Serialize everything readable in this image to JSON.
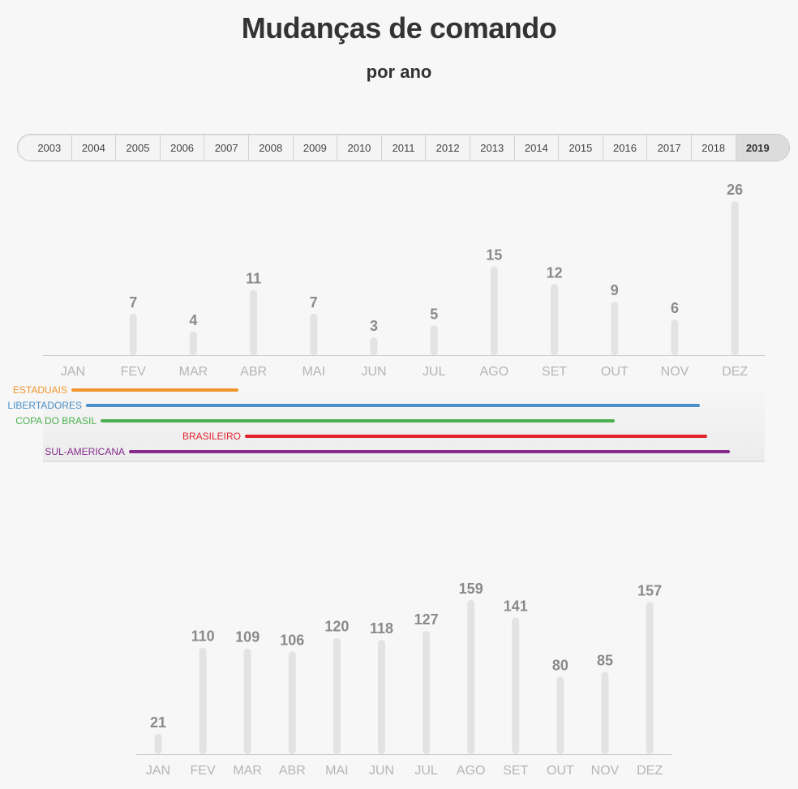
{
  "header": {
    "title": "Mudanças de comando",
    "subtitle": "por ano"
  },
  "year_tabs": {
    "years": [
      "2003",
      "2004",
      "2005",
      "2006",
      "2007",
      "2008",
      "2009",
      "2010",
      "2011",
      "2012",
      "2013",
      "2014",
      "2015",
      "2016",
      "2017",
      "2018",
      "2019"
    ],
    "selected": "2019"
  },
  "colors": {
    "bar": "#e3e3e3",
    "axis": "#cccccc",
    "value_label": "#8a8a8a",
    "tick_label": "#b5b5b5",
    "active_tab_bg": "#dcdcdc"
  },
  "chart_data": [
    {
      "type": "bar",
      "categories": [
        "JAN",
        "FEV",
        "MAR",
        "ABR",
        "MAI",
        "JUN",
        "JUL",
        "AGO",
        "SET",
        "OUT",
        "NOV",
        "DEZ"
      ],
      "values": [
        null,
        7,
        4,
        11,
        7,
        3,
        5,
        15,
        12,
        9,
        6,
        26
      ],
      "title": "",
      "xlabel": "",
      "ylabel": "",
      "ylim": [
        0,
        26
      ],
      "grid": false,
      "competitions": [
        {
          "name": "ESTADUAIS",
          "color": "#f0962d",
          "start_month": "JAN",
          "end_month": "ABR"
        },
        {
          "name": "LIBERTADORES",
          "color": "#4a8fc8",
          "start_month": "JAN",
          "end_month": "NOV"
        },
        {
          "name": "COPA DO BRASIL",
          "color": "#4cb04f",
          "start_month": "JAN",
          "end_month": "OUT"
        },
        {
          "name": "BRASILEIRO",
          "color": "#e3232e",
          "start_month": "ABR",
          "end_month": "NOV"
        },
        {
          "name": "SUL-AMERICANA",
          "color": "#862b8c",
          "start_month": "FEV",
          "end_month": "DEZ"
        }
      ]
    },
    {
      "type": "bar",
      "categories": [
        "JAN",
        "FEV",
        "MAR",
        "ABR",
        "MAI",
        "JUN",
        "JUL",
        "AGO",
        "SET",
        "OUT",
        "NOV",
        "DEZ"
      ],
      "values": [
        21,
        110,
        109,
        106,
        120,
        118,
        127,
        159,
        141,
        80,
        85,
        157
      ],
      "title": "",
      "xlabel": "",
      "ylabel": "",
      "ylim": [
        0,
        159
      ],
      "grid": false
    }
  ]
}
